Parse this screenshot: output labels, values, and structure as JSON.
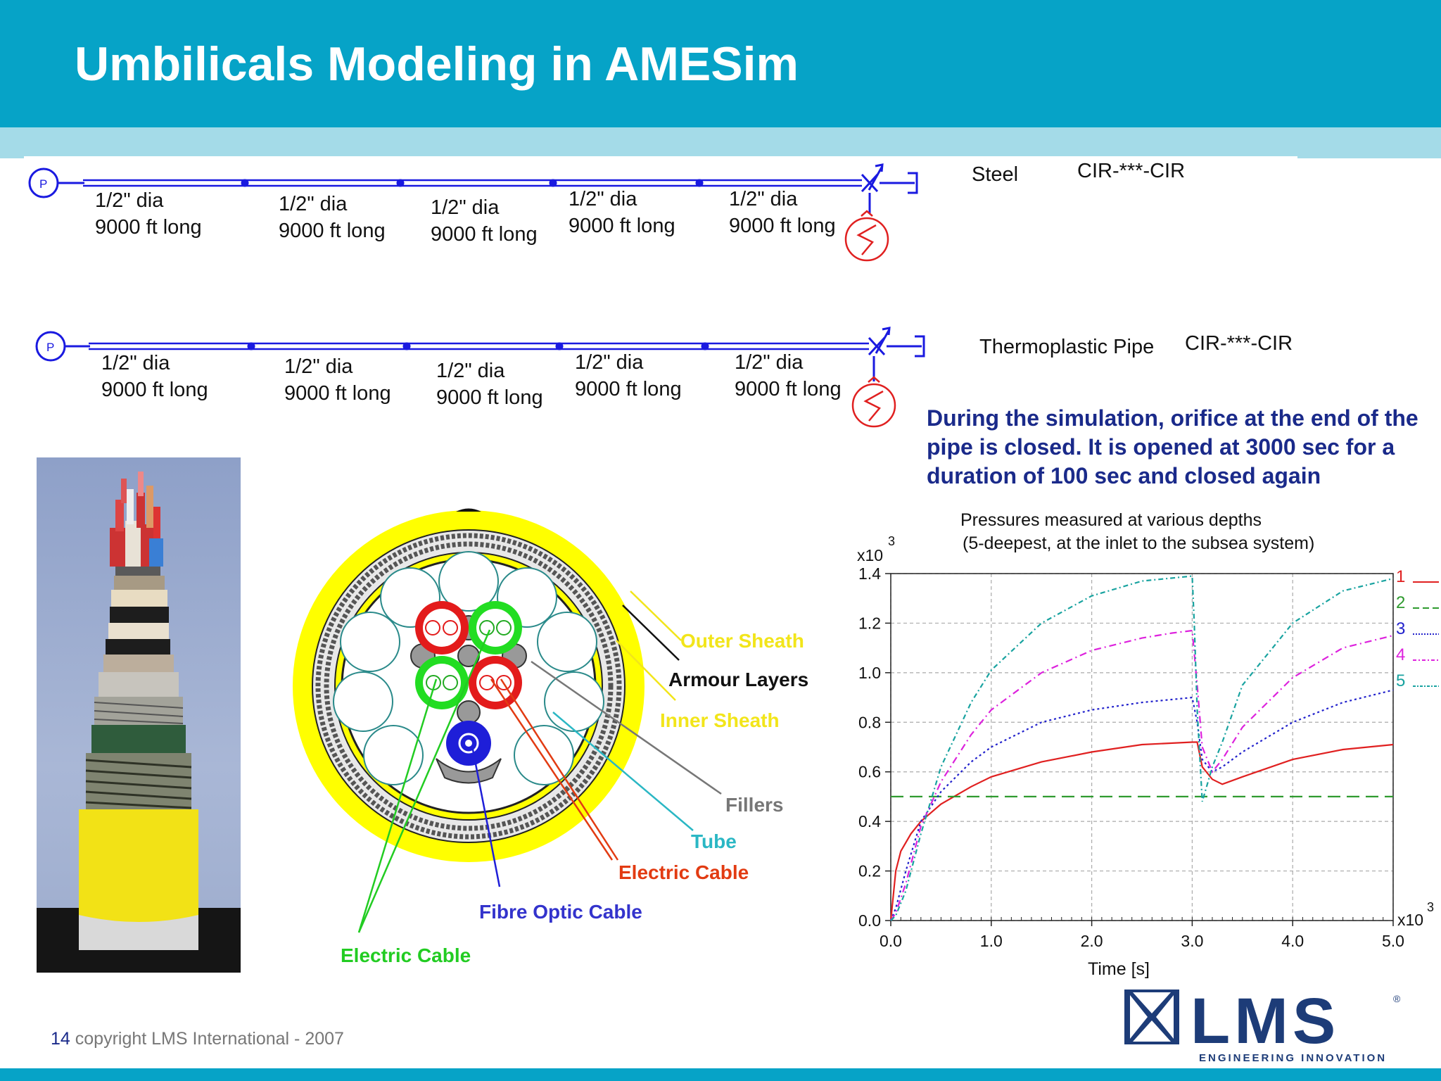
{
  "slide": {
    "title": "Umbilicals Modeling in AMESim",
    "footer_page": "14",
    "footer_text": "copyright LMS International - 2007"
  },
  "circuits": [
    {
      "pump_label": "P",
      "material": "Steel",
      "component_code": "CIR-***-CIR",
      "segments": [
        {
          "dia": "1/2\" dia",
          "length": "9000 ft long"
        },
        {
          "dia": "1/2\" dia",
          "length": "9000 ft long"
        },
        {
          "dia": "1/2\" dia",
          "length": "9000 ft long"
        },
        {
          "dia": "1/2\" dia",
          "length": "9000 ft long"
        },
        {
          "dia": "1/2\" dia",
          "length": "9000 ft long"
        }
      ]
    },
    {
      "pump_label": "P",
      "material": "Thermoplastic Pipe",
      "component_code": "CIR-***-CIR",
      "segments": [
        {
          "dia": "1/2\" dia",
          "length": "9000 ft long"
        },
        {
          "dia": "1/2\" dia",
          "length": "9000 ft long"
        },
        {
          "dia": "1/2\" dia",
          "length": "9000 ft long"
        },
        {
          "dia": "1/2\" dia",
          "length": "9000 ft long"
        },
        {
          "dia": "1/2\" dia",
          "length": "9000 ft long"
        }
      ]
    }
  ],
  "note": "During the simulation, orifice at the end of the pipe is closed. It is opened at 3000 sec for a duration of 100 sec and closed again",
  "cross_section": {
    "labels": {
      "outer_sheath": "Outer Sheath",
      "armour_layers": "Armour Layers",
      "inner_sheath": "Inner Sheath",
      "fillers": "Fillers",
      "tube": "Tube",
      "electric_cable_right": "Electric Cable",
      "fibre_optic": "Fibre Optic Cable",
      "electric_cable_left": "Electric Cable"
    },
    "colors": {
      "yellow_label": "#f2e51a",
      "black_label": "#111111",
      "grey_label": "#777777",
      "cyan_label": "#2ab7c4",
      "red_label": "#e23b12",
      "blue_label": "#3333cc",
      "green_label": "#22cc22"
    }
  },
  "chart_data": {
    "type": "line",
    "title": "Pressures measured at various depths",
    "subtitle": "(5-deepest, at the inlet to the subsea system)",
    "xlabel": "Time [s]",
    "x_multiplier": "x10",
    "x_multiplier_exp": "3",
    "y_multiplier": "x10",
    "y_multiplier_exp": "3",
    "xlim": [
      0,
      5.0
    ],
    "ylim": [
      0,
      1.4
    ],
    "xticks": [
      "0.0",
      "1.0",
      "2.0",
      "3.0",
      "4.0",
      "5.0"
    ],
    "yticks": [
      "0.0",
      "0.2",
      "0.4",
      "0.6",
      "0.8",
      "1.0",
      "1.2",
      "1.4"
    ],
    "grid": true,
    "legend_position": "right",
    "series": [
      {
        "name": "1",
        "color": "#e02020",
        "dash": "",
        "x": [
          0,
          0.05,
          0.1,
          0.2,
          0.3,
          0.5,
          0.8,
          1.0,
          1.5,
          2.0,
          2.5,
          3.0,
          3.05,
          3.1,
          3.2,
          3.3,
          3.5,
          4.0,
          4.5,
          5.0
        ],
        "values": [
          0.0,
          0.2,
          0.28,
          0.35,
          0.4,
          0.47,
          0.54,
          0.58,
          0.64,
          0.68,
          0.71,
          0.72,
          0.72,
          0.62,
          0.57,
          0.55,
          0.58,
          0.65,
          0.69,
          0.71
        ]
      },
      {
        "name": "2",
        "color": "#2e9a2e",
        "dash": "18 9",
        "x": [
          0,
          5.0
        ],
        "values": [
          0.5,
          0.5
        ]
      },
      {
        "name": "3",
        "color": "#2222cc",
        "dash": "3 4",
        "x": [
          0,
          0.05,
          0.15,
          0.3,
          0.5,
          0.8,
          1.0,
          1.5,
          2.0,
          2.5,
          3.0,
          3.05,
          3.1,
          3.2,
          3.3,
          3.5,
          4.0,
          4.5,
          5.0
        ],
        "values": [
          0.0,
          0.05,
          0.2,
          0.4,
          0.52,
          0.64,
          0.7,
          0.8,
          0.85,
          0.88,
          0.9,
          0.8,
          0.65,
          0.6,
          0.62,
          0.68,
          0.8,
          0.88,
          0.93
        ]
      },
      {
        "name": "4",
        "color": "#dd22dd",
        "dash": "10 5 2 5",
        "x": [
          0,
          0.05,
          0.15,
          0.3,
          0.5,
          0.8,
          1.0,
          1.5,
          2.0,
          2.5,
          2.8,
          3.0,
          3.05,
          3.1,
          3.2,
          3.3,
          3.5,
          4.0,
          4.5,
          5.0
        ],
        "values": [
          0.0,
          0.03,
          0.15,
          0.38,
          0.56,
          0.75,
          0.85,
          1.0,
          1.09,
          1.14,
          1.16,
          1.17,
          0.95,
          0.7,
          0.6,
          0.65,
          0.78,
          0.98,
          1.1,
          1.15
        ]
      },
      {
        "name": "5",
        "color": "#19a3a0",
        "dash": "7 4 2 4",
        "x": [
          0,
          0.05,
          0.15,
          0.3,
          0.5,
          0.8,
          1.0,
          1.5,
          2.0,
          2.5,
          3.0,
          3.02,
          3.05,
          3.1,
          3.2,
          3.3,
          3.5,
          4.0,
          4.5,
          5.0
        ],
        "values": [
          0.0,
          0.02,
          0.12,
          0.35,
          0.62,
          0.88,
          1.01,
          1.2,
          1.31,
          1.37,
          1.39,
          1.2,
          0.85,
          0.48,
          0.62,
          0.72,
          0.95,
          1.2,
          1.33,
          1.38
        ]
      }
    ]
  },
  "logo": {
    "text": "LMS",
    "tagline": "ENGINEERING INNOVATION",
    "registered": "®",
    "color": "#1d3c78"
  }
}
